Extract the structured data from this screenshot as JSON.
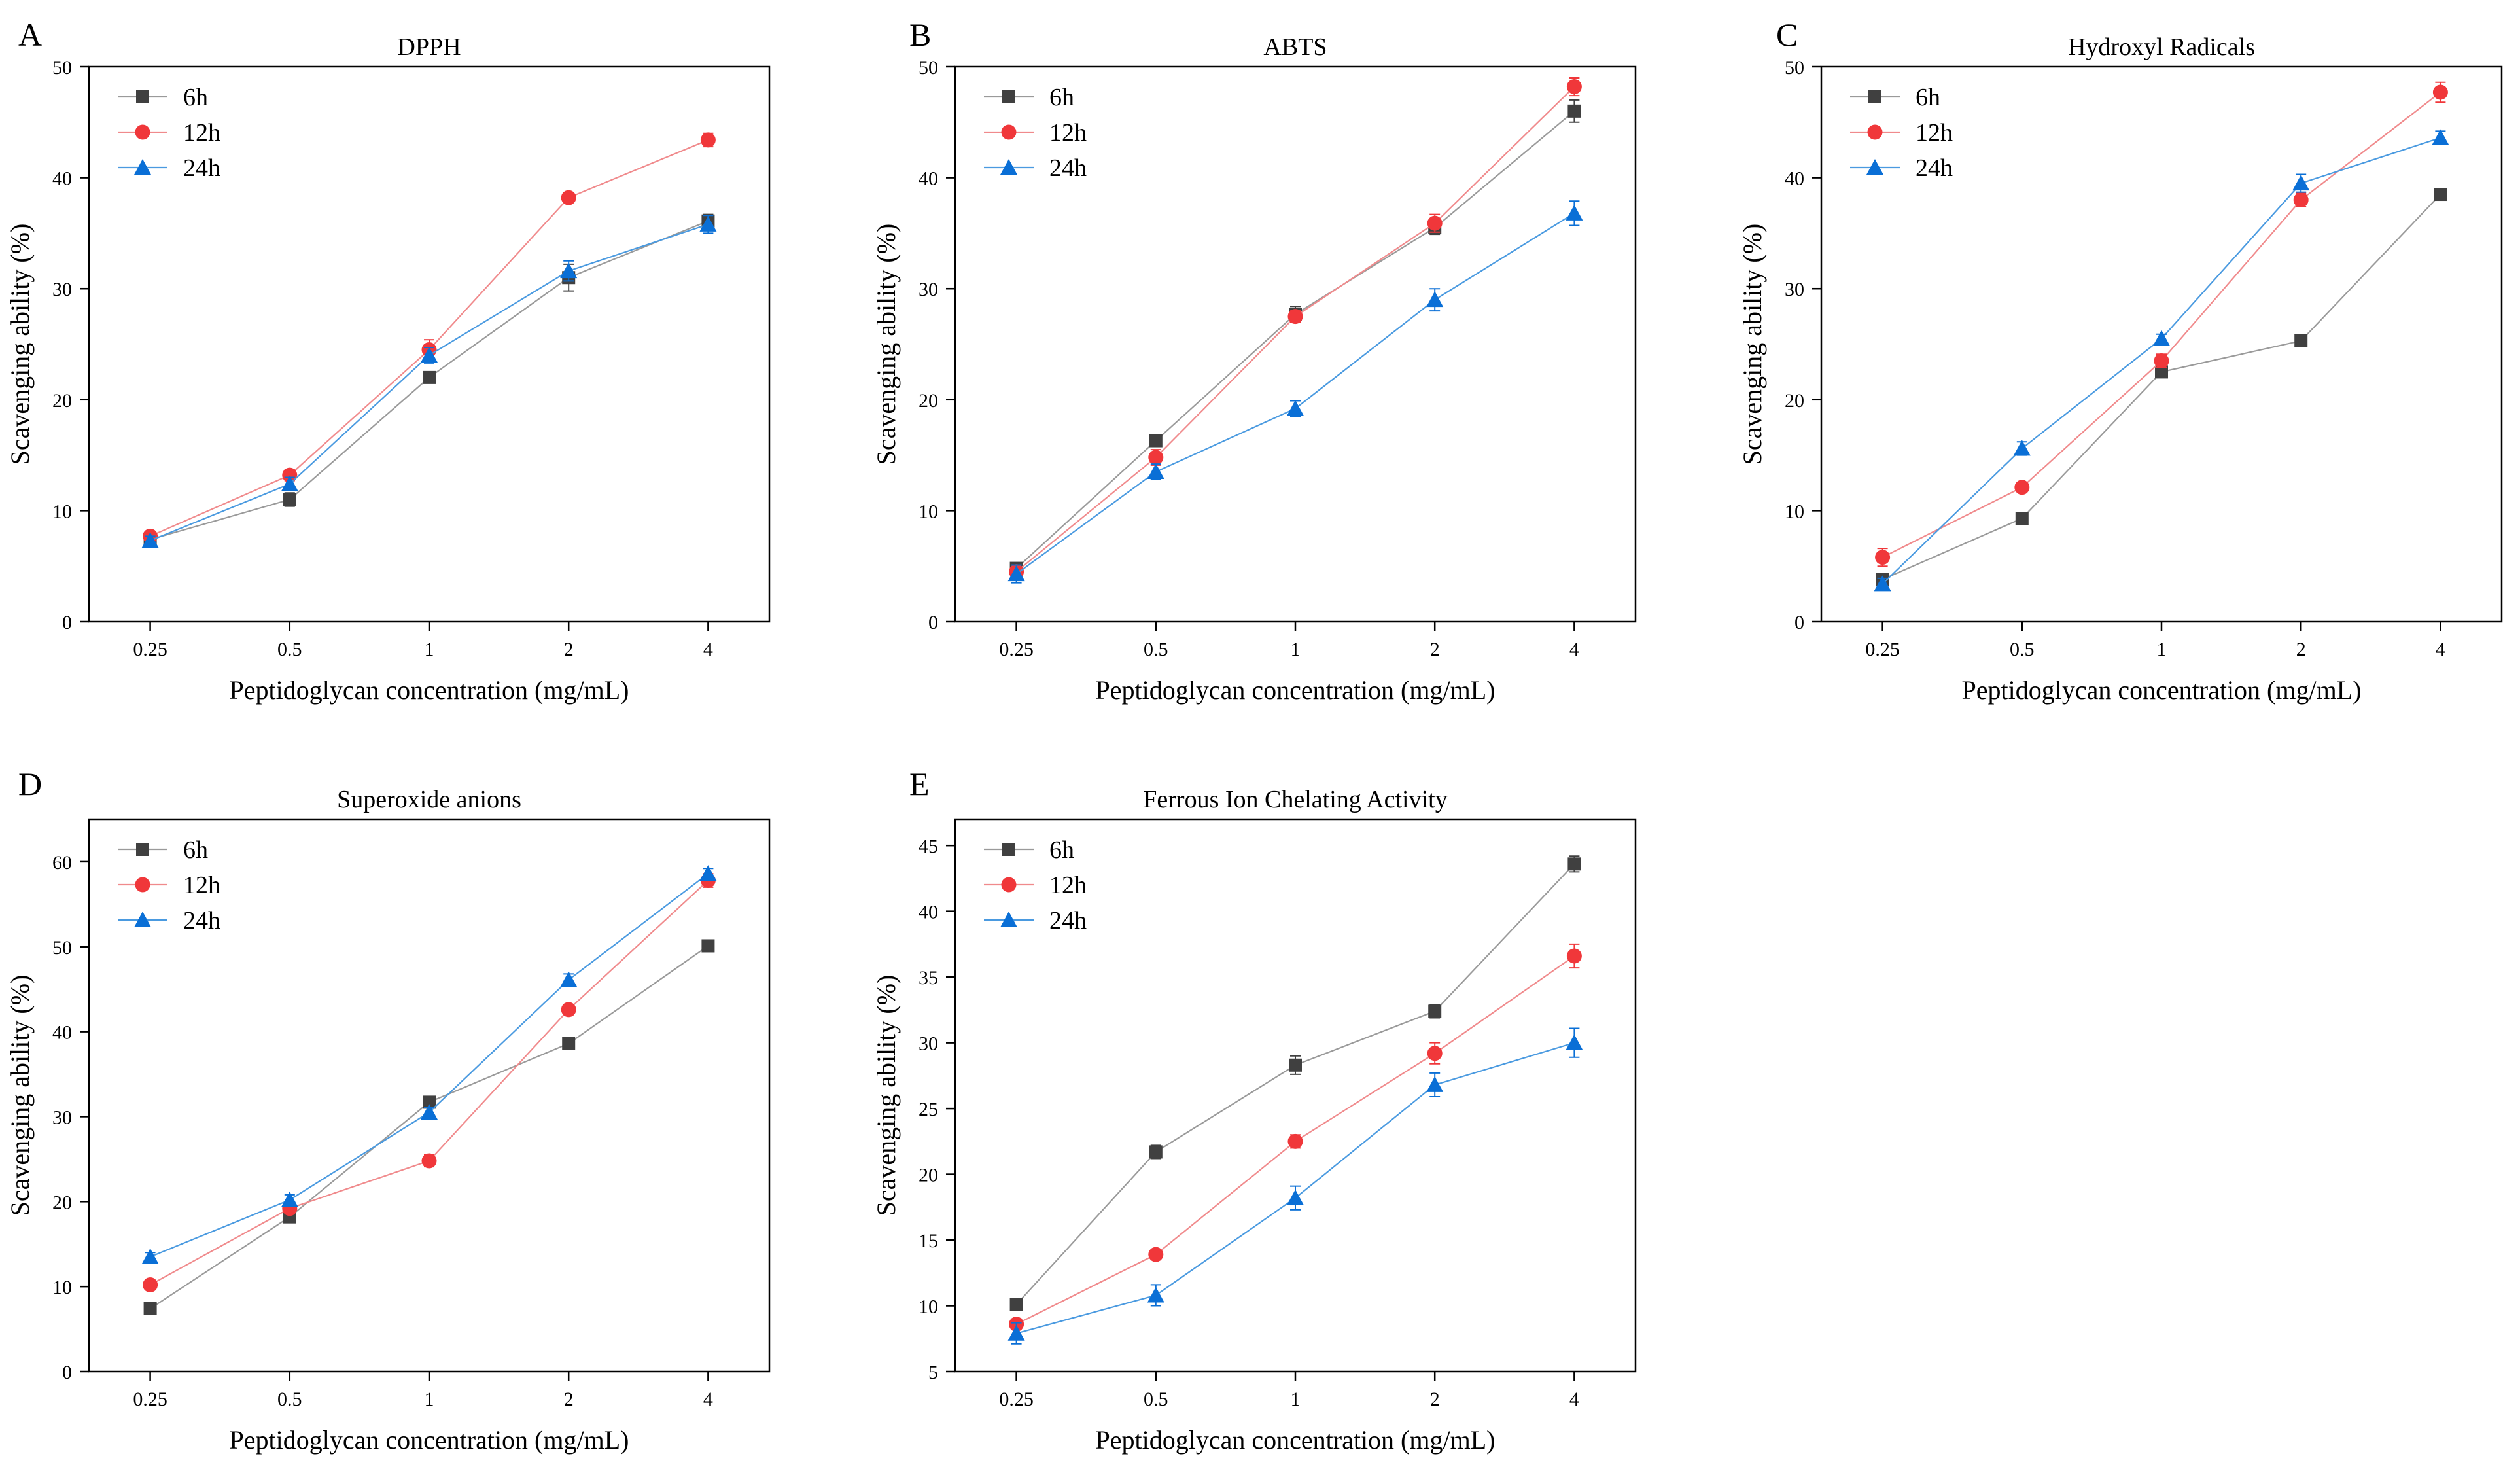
{
  "colors": {
    "6h": "#404040",
    "12h": "#f0373a",
    "24h": "#0a6fd6",
    "line6h": "#9a9a9a",
    "line12h": "#f08a8c",
    "line24h": "#4a9ae0",
    "axis": "#000000"
  },
  "chart_data": [
    {
      "id": "A",
      "type": "line",
      "title": "DPPH",
      "xlabel": "Peptidoglycan concentration (mg/mL)",
      "ylabel": "Scavenging ability (%)",
      "categories": [
        "0.25",
        "0.5",
        "1",
        "2",
        "4"
      ],
      "ylim": [
        0,
        50
      ],
      "yticks": [
        0,
        10,
        20,
        30,
        40,
        50
      ],
      "legend": "top-left",
      "series": [
        {
          "name": "6h",
          "marker": "square",
          "values": [
            7.4,
            11.0,
            22.0,
            31.0,
            36.1
          ],
          "errors": [
            0.4,
            0.6,
            0.4,
            1.2,
            0.6
          ]
        },
        {
          "name": "12h",
          "marker": "circle",
          "values": [
            7.7,
            13.2,
            24.5,
            38.2,
            43.4
          ],
          "errors": [
            0.4,
            0.5,
            0.9,
            0.4,
            0.6
          ]
        },
        {
          "name": "24h",
          "marker": "triangle",
          "values": [
            7.3,
            12.4,
            24.0,
            31.6,
            35.8
          ],
          "errors": [
            0.4,
            0.6,
            0.7,
            0.9,
            0.8
          ]
        }
      ]
    },
    {
      "id": "B",
      "type": "line",
      "title": "ABTS",
      "xlabel": "Peptidoglycan concentration (mg/mL)",
      "ylabel": "Scavenging ability (%)",
      "categories": [
        "0.25",
        "0.5",
        "1",
        "2",
        "4"
      ],
      "ylim": [
        0,
        50
      ],
      "yticks": [
        0,
        10,
        20,
        30,
        40,
        50
      ],
      "legend": "top-left",
      "series": [
        {
          "name": "6h",
          "marker": "square",
          "values": [
            4.8,
            16.3,
            27.7,
            35.5,
            46.0
          ],
          "errors": [
            0.4,
            0.5,
            0.7,
            0.6,
            1.0
          ]
        },
        {
          "name": "12h",
          "marker": "circle",
          "values": [
            4.5,
            14.8,
            27.5,
            35.9,
            48.2
          ],
          "errors": [
            0.4,
            0.7,
            0.5,
            0.8,
            0.8
          ]
        },
        {
          "name": "24h",
          "marker": "triangle",
          "values": [
            4.3,
            13.5,
            19.2,
            29.0,
            36.8
          ],
          "errors": [
            0.8,
            0.7,
            0.7,
            1.0,
            1.1
          ]
        }
      ]
    },
    {
      "id": "C",
      "type": "line",
      "title": "Hydroxyl Radicals",
      "xlabel": "Peptidoglycan concentration (mg/mL)",
      "ylabel": "Scavenging ability (%)",
      "categories": [
        "0.25",
        "0.5",
        "1",
        "2",
        "4"
      ],
      "ylim": [
        0,
        50
      ],
      "yticks": [
        0,
        10,
        20,
        30,
        40,
        50
      ],
      "legend": "top-left",
      "series": [
        {
          "name": "6h",
          "marker": "square",
          "values": [
            3.8,
            9.3,
            22.5,
            25.3,
            38.5
          ],
          "errors": [
            0.3,
            0.3,
            0.4,
            0.3,
            0.3
          ]
        },
        {
          "name": "12h",
          "marker": "circle",
          "values": [
            5.8,
            12.1,
            23.5,
            38.0,
            47.7
          ],
          "errors": [
            0.8,
            0.4,
            0.6,
            0.6,
            0.9
          ]
        },
        {
          "name": "24h",
          "marker": "triangle",
          "values": [
            3.4,
            15.6,
            25.5,
            39.5,
            43.6
          ],
          "errors": [
            0.5,
            0.6,
            0.4,
            0.8,
            0.6
          ]
        }
      ]
    },
    {
      "id": "D",
      "type": "line",
      "title": "Superoxide anions",
      "xlabel": "Peptidoglycan concentration (mg/mL)",
      "ylabel": "Scavenging ability (%)",
      "categories": [
        "0.25",
        "0.5",
        "1",
        "2",
        "4"
      ],
      "ylim": [
        0,
        65
      ],
      "yticks": [
        0,
        10,
        20,
        30,
        40,
        50,
        60
      ],
      "legend": "top-left",
      "series": [
        {
          "name": "6h",
          "marker": "square",
          "values": [
            7.4,
            18.2,
            31.7,
            38.6,
            50.1
          ],
          "errors": [
            0.3,
            0.5,
            0.5,
            0.4,
            0.4
          ]
        },
        {
          "name": "12h",
          "marker": "circle",
          "values": [
            10.2,
            19.2,
            24.8,
            42.6,
            57.8
          ],
          "errors": [
            0.5,
            0.6,
            0.7,
            0.6,
            0.8
          ]
        },
        {
          "name": "24h",
          "marker": "triangle",
          "values": [
            13.5,
            20.2,
            30.5,
            46.1,
            58.6
          ],
          "errors": [
            0.5,
            0.6,
            0.6,
            0.7,
            0.6
          ]
        }
      ]
    },
    {
      "id": "E",
      "type": "line",
      "title": "Ferrous Ion Chelating Activity",
      "xlabel": "Peptidoglycan concentration (mg/mL)",
      "ylabel": "Scavenging ability (%)",
      "categories": [
        "0.25",
        "0.5",
        "1",
        "2",
        "4"
      ],
      "ylim": [
        5,
        47
      ],
      "yticks": [
        5,
        10,
        15,
        20,
        25,
        30,
        35,
        40,
        45
      ],
      "legend": "top-left",
      "series": [
        {
          "name": "6h",
          "marker": "square",
          "values": [
            10.1,
            21.7,
            28.3,
            32.4,
            43.6
          ],
          "errors": [
            0.3,
            0.5,
            0.7,
            0.5,
            0.6
          ]
        },
        {
          "name": "12h",
          "marker": "circle",
          "values": [
            8.6,
            13.9,
            22.5,
            29.2,
            36.6
          ],
          "errors": [
            0.4,
            0.4,
            0.5,
            0.8,
            0.9
          ]
        },
        {
          "name": "24h",
          "marker": "triangle",
          "values": [
            7.9,
            10.8,
            18.2,
            26.8,
            30.0
          ],
          "errors": [
            0.8,
            0.8,
            0.9,
            0.9,
            1.1
          ]
        }
      ]
    }
  ]
}
